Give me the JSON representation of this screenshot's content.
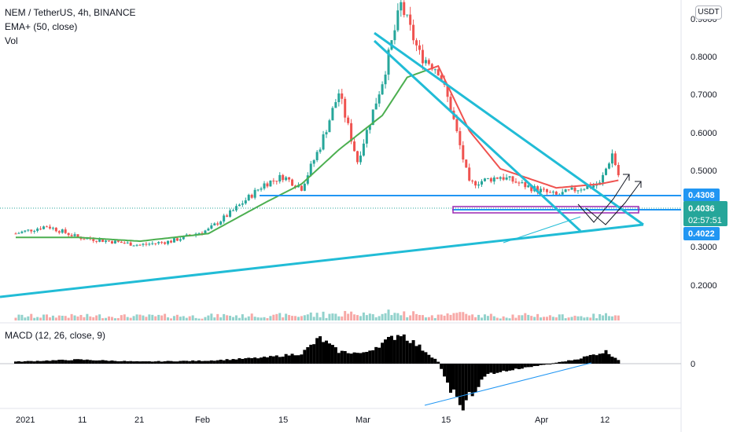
{
  "header": {
    "symbol_title": "NEM / TetherUS, 4h, BINANCE",
    "ema_label": "EMA+ (50, close)",
    "vol_label": "Vol",
    "currency_button": "USDT"
  },
  "macd": {
    "label": "MACD (12, 26, close, 9)",
    "zero_label": "0"
  },
  "price_axis": {
    "ticks": [
      "0.9000",
      "0.8000",
      "0.7000",
      "0.6000",
      "0.5000",
      "0.3000",
      "0.2000"
    ]
  },
  "price_tags": {
    "resistance": "0.4308",
    "last_price": "0.4036",
    "countdown": "02:57:51",
    "support": "0.4022"
  },
  "time_axis": {
    "ticks": [
      "2021",
      "11",
      "21",
      "Feb",
      "15",
      "Mar",
      "15",
      "Apr",
      "12"
    ]
  },
  "colors": {
    "trendline": "#21bcd6",
    "horizontal_level": "#2196f3",
    "ema": "#4caf50",
    "ema_bear": "#ef5350",
    "candle_up": "#26a69a",
    "candle_down": "#ef5350",
    "macd_hist": "#000000",
    "pattern": "#9c27b0"
  },
  "chart_data": {
    "type": "candlestick",
    "title": "NEM / TetherUS, 4h, BINANCE",
    "ylim": [
      0.15,
      0.9
    ],
    "price_series": {
      "name": "NEM / TetherUS",
      "x": [
        "2021-01-01",
        "2021-01-06",
        "2021-01-11",
        "2021-01-16",
        "2021-01-21",
        "2021-01-26",
        "2021-02-01",
        "2021-02-05",
        "2021-02-10",
        "2021-02-13",
        "2021-02-16",
        "2021-02-19",
        "2021-02-22",
        "2021-02-25",
        "2021-03-01",
        "2021-03-04",
        "2021-03-07",
        "2021-03-10",
        "2021-03-12",
        "2021-03-15",
        "2021-03-20",
        "2021-03-25",
        "2021-03-29",
        "2021-04-02",
        "2021-04-05",
        "2021-04-07",
        "2021-04-08"
      ],
      "close": [
        0.25,
        0.27,
        0.24,
        0.23,
        0.22,
        0.23,
        0.26,
        0.31,
        0.38,
        0.4,
        0.37,
        0.48,
        0.62,
        0.44,
        0.65,
        0.85,
        0.72,
        0.68,
        0.58,
        0.38,
        0.4,
        0.37,
        0.35,
        0.37,
        0.38,
        0.46,
        0.4036
      ]
    },
    "ema": {
      "name": "EMA+ (50, close)",
      "x": [
        "2021-01-01",
        "2021-01-11",
        "2021-01-21",
        "2021-02-01",
        "2021-02-10",
        "2021-02-16",
        "2021-02-22",
        "2021-03-01",
        "2021-03-05",
        "2021-03-10",
        "2021-03-15",
        "2021-03-20",
        "2021-03-29",
        "2021-04-05",
        "2021-04-08"
      ],
      "values": [
        0.24,
        0.24,
        0.23,
        0.25,
        0.33,
        0.38,
        0.47,
        0.56,
        0.66,
        0.69,
        0.52,
        0.42,
        0.37,
        0.38,
        0.39
      ]
    },
    "levels": {
      "resistance": 0.4308,
      "last_price": 0.4036,
      "support": 0.4022
    },
    "macd_histogram": {
      "name": "MACD (12, 26, close, 9)",
      "x": [
        "2021-01-01",
        "2021-01-11",
        "2021-01-21",
        "2021-02-01",
        "2021-02-10",
        "2021-02-16",
        "2021-02-19",
        "2021-02-22",
        "2021-02-26",
        "2021-03-01",
        "2021-03-04",
        "2021-03-08",
        "2021-03-10",
        "2021-03-12",
        "2021-03-14",
        "2021-03-18",
        "2021-03-25",
        "2021-04-01",
        "2021-04-06",
        "2021-04-08"
      ],
      "values": [
        0.002,
        0.004,
        0.002,
        0.003,
        0.006,
        0.01,
        0.025,
        0.012,
        0.01,
        0.02,
        0.03,
        0.012,
        0.002,
        -0.025,
        -0.04,
        -0.01,
        -0.003,
        0.004,
        0.012,
        0.004
      ]
    }
  }
}
